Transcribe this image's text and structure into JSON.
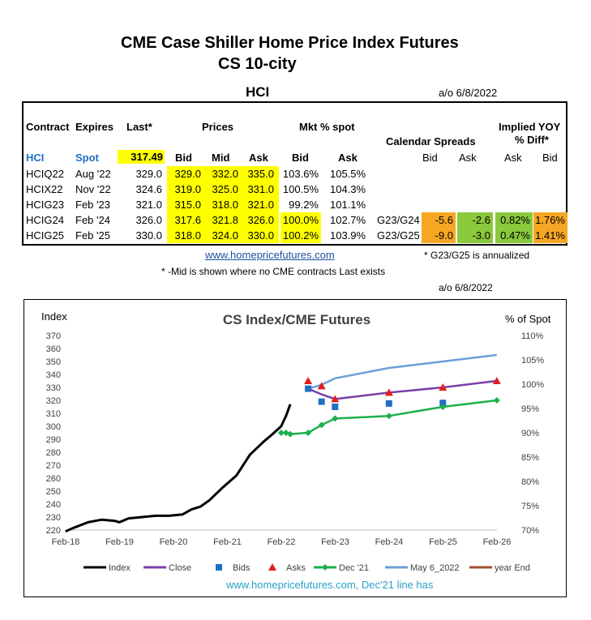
{
  "page": {
    "title1": "CME Case Shiller Home Price Index Futures",
    "title2": "CS 10-city",
    "section": "HCI",
    "asof_top": "a/o 6/8/2022",
    "asof_chart": "a/o 6/8/2022",
    "link": "www.homepricefutures.com",
    "note_annualized": "* G23/G25 is annualized",
    "note_mid": "* -Mid is shown where no CME contracts Last exists"
  },
  "table": {
    "headers": {
      "contract": "Contract",
      "expires": "Expires",
      "last": "Last*",
      "prices": "Prices",
      "mkt_spot": "Mkt % spot",
      "cal_spreads": "Calendar Spreads",
      "implied1": "Implied YOY",
      "implied2": "% Diff*",
      "bid": "Bid",
      "mid": "Mid",
      "ask": "Ask",
      "mbid": "Bid",
      "mask": "Ask",
      "sbid": "Bid",
      "sask": "Ask",
      "iask": "Ask",
      "ibid": "Bid"
    },
    "spot": {
      "contract": "HCI",
      "expires": "Spot",
      "last": "317.49"
    },
    "rows": [
      {
        "contract": "HCIQ22",
        "expires": "Aug '22",
        "last": "329.0",
        "bid": "329.0",
        "mid": "332.0",
        "ask": "335.0",
        "mbid": "103.6%",
        "mask": "105.5%"
      },
      {
        "contract": "HCIX22",
        "expires": "Nov '22",
        "last": "324.6",
        "bid": "319.0",
        "mid": "325.0",
        "ask": "331.0",
        "mbid": "100.5%",
        "mask": "104.3%"
      },
      {
        "contract": "HCIG23",
        "expires": "Feb '23",
        "last": "321.0",
        "bid": "315.0",
        "mid": "318.0",
        "ask": "321.0",
        "mbid": "99.2%",
        "mask": "101.1%"
      },
      {
        "contract": "HCIG24",
        "expires": "Feb '24",
        "last": "326.0",
        "bid": "317.6",
        "mid": "321.8",
        "ask": "326.0",
        "mbid": "100.0%",
        "mask": "102.7%",
        "spread": "G23/G24",
        "sbid": "-5.6",
        "sask": "-2.6",
        "iask": "0.82%",
        "ibid": "1.76%"
      },
      {
        "contract": "HCIG25",
        "expires": "Feb '25",
        "last": "330.0",
        "bid": "318.0",
        "mid": "324.0",
        "ask": "330.0",
        "mbid": "100.2%",
        "mask": "103.9%",
        "spread": "G23/G25",
        "sbid": "-9.0",
        "sask": "-3.0",
        "iask": "0.47%",
        "ibid": "1.41%"
      }
    ]
  },
  "chart_data": {
    "type": "line",
    "title": "CS Index/CME Futures",
    "ylabel_left": "Index",
    "ylabel_right": "% of Spot",
    "yticks_left": [
      "370",
      "360",
      "350",
      "340",
      "330",
      "320",
      "310",
      "300",
      "290",
      "280",
      "270",
      "260",
      "250",
      "240",
      "230",
      "220"
    ],
    "yticks_right": [
      "110%",
      "105%",
      "100%",
      "95%",
      "90%",
      "85%",
      "80%",
      "75%",
      "70%"
    ],
    "xticks": [
      "Feb-18",
      "Feb-19",
      "Feb-20",
      "Feb-21",
      "Feb-22",
      "Feb-23",
      "Feb-24",
      "Feb-25",
      "Feb-26"
    ],
    "ylim_left": [
      220,
      370
    ],
    "ylim_right": [
      70,
      110
    ],
    "xlim": [
      2018.083,
      2026.083
    ],
    "footer": "www.homepricefutures.com, Dec'21 line has",
    "legend": [
      "Index",
      "Close",
      "Bids",
      "Asks",
      "Dec '21",
      "May 6_2022",
      "year End"
    ],
    "series": [
      {
        "name": "Index",
        "color": "#000000",
        "axis": "left",
        "x": [
          2018.08,
          2018.25,
          2018.5,
          2018.75,
          2019.0,
          2019.08,
          2019.25,
          2019.5,
          2019.75,
          2020.0,
          2020.25,
          2020.42,
          2020.58,
          2020.75,
          2021.0,
          2021.25,
          2021.5,
          2021.75,
          2021.92,
          2022.08,
          2022.17,
          2022.25
        ],
        "y": [
          219,
          222,
          226,
          228,
          227,
          226,
          229,
          230,
          231,
          231,
          232,
          236,
          238,
          243,
          253,
          262,
          278,
          288,
          294,
          300,
          308,
          317
        ]
      },
      {
        "name": "Close",
        "color": "#7b3fa8",
        "axis": "left",
        "x": [
          2022.58,
          2022.83,
          2023.08,
          2024.08,
          2025.08,
          2026.08
        ],
        "y": [
          329,
          324.6,
          321,
          326,
          330,
          335
        ]
      },
      {
        "name": "Bids",
        "color": "#1f6fc5",
        "axis": "left",
        "x": [
          2022.58,
          2022.83,
          2023.08,
          2024.08,
          2025.08
        ],
        "y": [
          329,
          319,
          315,
          317.6,
          318
        ]
      },
      {
        "name": "Asks",
        "color": "#e02020",
        "axis": "left",
        "x": [
          2022.58,
          2022.83,
          2023.08,
          2024.08,
          2025.08,
          2026.08
        ],
        "y": [
          335,
          331,
          321,
          326,
          330,
          335
        ]
      },
      {
        "name": "Dec '21",
        "color": "#1bb04b",
        "axis": "left",
        "x": [
          2022.08,
          2022.17,
          2022.25,
          2022.58,
          2022.83,
          2023.08,
          2024.08,
          2025.08,
          2026.08
        ],
        "y": [
          295,
          295,
          294,
          295,
          301,
          306,
          308,
          315,
          320
        ]
      },
      {
        "name": "May 6_2022",
        "color": "#6aa0d6",
        "axis": "left",
        "x": [
          2022.58,
          2022.83,
          2023.08,
          2024.08,
          2025.08,
          2026.08
        ],
        "y": [
          329,
          332,
          337,
          345,
          350,
          355
        ]
      },
      {
        "name": "year End",
        "color": "#a0522d",
        "axis": "left",
        "x": [],
        "y": []
      }
    ]
  }
}
